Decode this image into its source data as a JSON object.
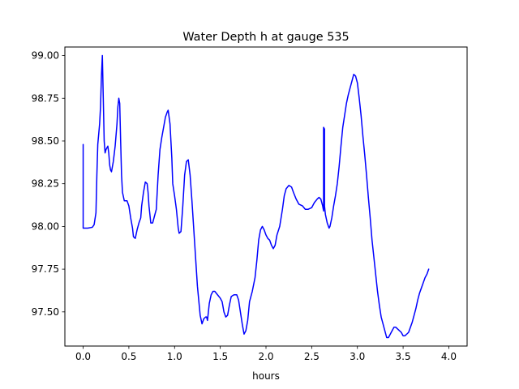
{
  "chart_data": {
    "type": "line",
    "title": "Water Depth h at gauge 535",
    "xlabel": "hours",
    "ylabel": "",
    "xlim": [
      -0.2,
      4.2
    ],
    "ylim": [
      97.3,
      99.05
    ],
    "xticks": [
      0.0,
      0.5,
      1.0,
      1.5,
      2.0,
      2.5,
      3.0,
      3.5,
      4.0
    ],
    "xtick_labels": [
      "0.0",
      "0.5",
      "1.0",
      "1.5",
      "2.0",
      "2.5",
      "3.0",
      "3.5",
      "4.0"
    ],
    "yticks": [
      97.5,
      97.75,
      98.0,
      98.25,
      98.5,
      98.75,
      99.0
    ],
    "ytick_labels": [
      "97.50",
      "97.75",
      "98.00",
      "98.25",
      "98.50",
      "98.75",
      "99.00"
    ],
    "grid": false,
    "legend": "none",
    "series": [
      {
        "color": "#0000ff",
        "points": [
          [
            0.0,
            98.48
          ],
          [
            0.0,
            97.99
          ],
          [
            0.05,
            97.99
          ],
          [
            0.1,
            97.995
          ],
          [
            0.12,
            98.01
          ],
          [
            0.14,
            98.08
          ],
          [
            0.15,
            98.3
          ],
          [
            0.16,
            98.48
          ],
          [
            0.18,
            98.6
          ],
          [
            0.19,
            98.7
          ],
          [
            0.2,
            98.88
          ],
          [
            0.21,
            99.0
          ],
          [
            0.22,
            98.75
          ],
          [
            0.23,
            98.5
          ],
          [
            0.24,
            98.43
          ],
          [
            0.25,
            98.45
          ],
          [
            0.26,
            98.46
          ],
          [
            0.27,
            98.47
          ],
          [
            0.28,
            98.43
          ],
          [
            0.29,
            98.36
          ],
          [
            0.3,
            98.33
          ],
          [
            0.31,
            98.32
          ],
          [
            0.33,
            98.38
          ],
          [
            0.35,
            98.47
          ],
          [
            0.37,
            98.6
          ],
          [
            0.38,
            98.7
          ],
          [
            0.39,
            98.75
          ],
          [
            0.4,
            98.72
          ],
          [
            0.41,
            98.5
          ],
          [
            0.42,
            98.3
          ],
          [
            0.43,
            98.2
          ],
          [
            0.45,
            98.15
          ],
          [
            0.48,
            98.15
          ],
          [
            0.5,
            98.12
          ],
          [
            0.52,
            98.05
          ],
          [
            0.54,
            97.99
          ],
          [
            0.55,
            97.94
          ],
          [
            0.57,
            97.93
          ],
          [
            0.59,
            97.98
          ],
          [
            0.61,
            98.02
          ],
          [
            0.63,
            98.05
          ],
          [
            0.64,
            98.12
          ],
          [
            0.66,
            98.2
          ],
          [
            0.68,
            98.26
          ],
          [
            0.7,
            98.25
          ],
          [
            0.71,
            98.2
          ],
          [
            0.72,
            98.12
          ],
          [
            0.74,
            98.02
          ],
          [
            0.76,
            98.02
          ],
          [
            0.78,
            98.06
          ],
          [
            0.8,
            98.1
          ],
          [
            0.82,
            98.3
          ],
          [
            0.84,
            98.45
          ],
          [
            0.86,
            98.52
          ],
          [
            0.88,
            98.58
          ],
          [
            0.9,
            98.64
          ],
          [
            0.92,
            98.67
          ],
          [
            0.93,
            98.68
          ],
          [
            0.95,
            98.6
          ],
          [
            0.97,
            98.4
          ],
          [
            0.98,
            98.25
          ],
          [
            1.0,
            98.18
          ],
          [
            1.02,
            98.1
          ],
          [
            1.04,
            97.99
          ],
          [
            1.05,
            97.96
          ],
          [
            1.07,
            97.97
          ],
          [
            1.09,
            98.12
          ],
          [
            1.11,
            98.3
          ],
          [
            1.13,
            98.38
          ],
          [
            1.15,
            98.39
          ],
          [
            1.17,
            98.3
          ],
          [
            1.19,
            98.15
          ],
          [
            1.22,
            97.9
          ],
          [
            1.25,
            97.65
          ],
          [
            1.28,
            97.48
          ],
          [
            1.3,
            97.43
          ],
          [
            1.32,
            97.46
          ],
          [
            1.34,
            97.47
          ],
          [
            1.35,
            97.47
          ],
          [
            1.36,
            97.45
          ],
          [
            1.37,
            97.5
          ],
          [
            1.38,
            97.55
          ],
          [
            1.4,
            97.6
          ],
          [
            1.42,
            97.62
          ],
          [
            1.44,
            97.62
          ],
          [
            1.47,
            97.6
          ],
          [
            1.5,
            97.58
          ],
          [
            1.52,
            97.56
          ],
          [
            1.54,
            97.5
          ],
          [
            1.56,
            97.47
          ],
          [
            1.58,
            97.48
          ],
          [
            1.6,
            97.54
          ],
          [
            1.62,
            97.59
          ],
          [
            1.65,
            97.6
          ],
          [
            1.68,
            97.6
          ],
          [
            1.7,
            97.57
          ],
          [
            1.72,
            97.5
          ],
          [
            1.74,
            97.43
          ],
          [
            1.76,
            97.37
          ],
          [
            1.78,
            97.39
          ],
          [
            1.8,
            97.45
          ],
          [
            1.82,
            97.56
          ],
          [
            1.85,
            97.62
          ],
          [
            1.88,
            97.7
          ],
          [
            1.9,
            97.8
          ],
          [
            1.92,
            97.92
          ],
          [
            1.94,
            97.98
          ],
          [
            1.96,
            98.0
          ],
          [
            1.98,
            97.98
          ],
          [
            2.0,
            97.95
          ],
          [
            2.02,
            97.93
          ],
          [
            2.04,
            97.92
          ],
          [
            2.06,
            97.89
          ],
          [
            2.08,
            97.87
          ],
          [
            2.1,
            97.89
          ],
          [
            2.12,
            97.95
          ],
          [
            2.15,
            98.0
          ],
          [
            2.18,
            98.1
          ],
          [
            2.2,
            98.18
          ],
          [
            2.22,
            98.22
          ],
          [
            2.25,
            98.24
          ],
          [
            2.28,
            98.23
          ],
          [
            2.3,
            98.2
          ],
          [
            2.33,
            98.16
          ],
          [
            2.36,
            98.13
          ],
          [
            2.4,
            98.12
          ],
          [
            2.43,
            98.1
          ],
          [
            2.46,
            98.1
          ],
          [
            2.5,
            98.11
          ],
          [
            2.53,
            98.14
          ],
          [
            2.56,
            98.16
          ],
          [
            2.58,
            98.17
          ],
          [
            2.6,
            98.16
          ],
          [
            2.62,
            98.12
          ],
          [
            2.63,
            98.09
          ],
          [
            2.63,
            98.58
          ],
          [
            2.64,
            98.57
          ],
          [
            2.64,
            98.12
          ],
          [
            2.65,
            98.07
          ],
          [
            2.67,
            98.02
          ],
          [
            2.69,
            97.99
          ],
          [
            2.7,
            98.0
          ],
          [
            2.72,
            98.05
          ],
          [
            2.74,
            98.12
          ],
          [
            2.76,
            98.18
          ],
          [
            2.78,
            98.25
          ],
          [
            2.8,
            98.35
          ],
          [
            2.82,
            98.47
          ],
          [
            2.84,
            98.58
          ],
          [
            2.86,
            98.65
          ],
          [
            2.88,
            98.72
          ],
          [
            2.9,
            98.77
          ],
          [
            2.92,
            98.81
          ],
          [
            2.94,
            98.85
          ],
          [
            2.96,
            98.89
          ],
          [
            2.98,
            98.88
          ],
          [
            3.0,
            98.84
          ],
          [
            3.02,
            98.75
          ],
          [
            3.04,
            98.65
          ],
          [
            3.06,
            98.53
          ],
          [
            3.08,
            98.42
          ],
          [
            3.1,
            98.3
          ],
          [
            3.12,
            98.17
          ],
          [
            3.14,
            98.05
          ],
          [
            3.16,
            97.92
          ],
          [
            3.18,
            97.82
          ],
          [
            3.2,
            97.72
          ],
          [
            3.22,
            97.62
          ],
          [
            3.24,
            97.54
          ],
          [
            3.26,
            97.47
          ],
          [
            3.28,
            97.43
          ],
          [
            3.3,
            97.39
          ],
          [
            3.32,
            97.35
          ],
          [
            3.34,
            97.35
          ],
          [
            3.36,
            97.37
          ],
          [
            3.38,
            97.39
          ],
          [
            3.4,
            97.41
          ],
          [
            3.42,
            97.41
          ],
          [
            3.44,
            97.4
          ],
          [
            3.46,
            97.39
          ],
          [
            3.48,
            97.38
          ],
          [
            3.5,
            97.36
          ],
          [
            3.52,
            97.36
          ],
          [
            3.54,
            97.37
          ],
          [
            3.56,
            97.38
          ],
          [
            3.58,
            97.41
          ],
          [
            3.6,
            97.44
          ],
          [
            3.62,
            97.48
          ],
          [
            3.64,
            97.52
          ],
          [
            3.66,
            97.57
          ],
          [
            3.68,
            97.61
          ],
          [
            3.7,
            97.64
          ],
          [
            3.72,
            97.67
          ],
          [
            3.74,
            97.7
          ],
          [
            3.76,
            97.72
          ],
          [
            3.78,
            97.75
          ]
        ]
      }
    ]
  }
}
